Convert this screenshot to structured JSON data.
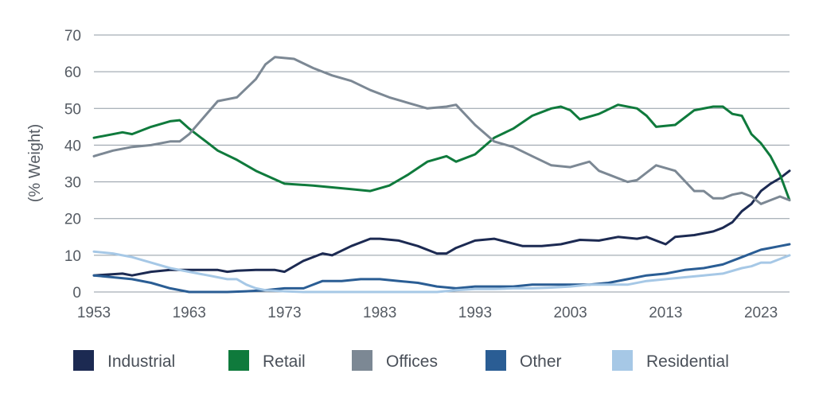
{
  "chart_data": {
    "type": "line",
    "title": "",
    "xlabel": "",
    "ylabel": "(% Weight)",
    "ylim": [
      0,
      70
    ],
    "xlim": [
      1953,
      2026
    ],
    "yticks": [
      0,
      10,
      20,
      30,
      40,
      50,
      60,
      70
    ],
    "xticks": [
      1953,
      1963,
      1973,
      1983,
      1993,
      2003,
      2013,
      2023
    ],
    "grid": true,
    "legend": "bottom",
    "series": [
      {
        "name": "Industrial",
        "color": "#1c2a52",
        "x": [
          1953,
          1956,
          1957,
          1959,
          1961,
          1963,
          1966,
          1967,
          1968,
          1970,
          1972,
          1973,
          1975,
          1977,
          1978,
          1980,
          1982,
          1983,
          1985,
          1987,
          1989,
          1990,
          1991,
          1993,
          1995,
          1998,
          2000,
          2002,
          2004,
          2006,
          2008,
          2010,
          2011,
          2013,
          2014,
          2016,
          2018,
          2019,
          2020,
          2021,
          2022,
          2023,
          2024,
          2025,
          2026
        ],
        "values": [
          4.5,
          5,
          4.5,
          5.5,
          6,
          6,
          6,
          5.5,
          5.8,
          6,
          6,
          5.5,
          8.5,
          10.5,
          10,
          12.5,
          14.5,
          14.5,
          14,
          12.5,
          10.5,
          10.5,
          12,
          14,
          14.5,
          12.5,
          12.5,
          13,
          14.2,
          14,
          15,
          14.5,
          15,
          13,
          15,
          15.5,
          16.5,
          17.5,
          19,
          22,
          24,
          27.5,
          29.5,
          31,
          33
        ]
      },
      {
        "name": "Retail",
        "color": "#0f7a3c",
        "x": [
          1953,
          1956,
          1957,
          1959,
          1961,
          1962,
          1963,
          1965,
          1966,
          1968,
          1970,
          1973,
          1976,
          1978,
          1980,
          1982,
          1984,
          1986,
          1988,
          1990,
          1991,
          1993,
          1995,
          1997,
          1999,
          2001,
          2002,
          2003,
          2004,
          2006,
          2008,
          2010,
          2011,
          2012,
          2014,
          2016,
          2018,
          2019,
          2020,
          2021,
          2022,
          2023,
          2024,
          2025,
          2026
        ],
        "values": [
          42,
          43.5,
          43,
          45,
          46.5,
          46.8,
          44.5,
          40.5,
          38.5,
          36,
          33,
          29.5,
          29,
          28.5,
          28,
          27.5,
          29,
          32,
          35.5,
          37,
          35.5,
          37.5,
          42,
          44.5,
          48,
          50,
          50.5,
          49.5,
          47,
          48.5,
          51,
          50,
          48,
          45,
          45.5,
          49.5,
          50.5,
          50.5,
          48.5,
          48,
          43,
          40.5,
          37,
          32,
          25
        ]
      },
      {
        "name": "Offices",
        "color": "#7c8894",
        "x": [
          1953,
          1955,
          1957,
          1959,
          1961,
          1962,
          1963,
          1965,
          1966,
          1968,
          1970,
          1971,
          1972,
          1974,
          1976,
          1978,
          1980,
          1982,
          1984,
          1986,
          1988,
          1990,
          1991,
          1993,
          1995,
          1997,
          1999,
          2001,
          2003,
          2005,
          2006,
          2007,
          2009,
          2010,
          2011,
          2012,
          2014,
          2016,
          2017,
          2018,
          2019,
          2020,
          2021,
          2022,
          2023,
          2024,
          2025,
          2026
        ],
        "values": [
          37,
          38.5,
          39.5,
          40,
          41,
          41,
          43,
          49,
          52,
          53,
          58,
          62,
          64,
          63.5,
          61,
          59,
          57.5,
          55,
          53,
          51.5,
          50,
          50.5,
          51,
          45.5,
          41,
          39.5,
          37,
          34.5,
          34,
          35.5,
          33,
          32,
          30,
          30.5,
          32.5,
          34.5,
          33,
          27.5,
          27.5,
          25.5,
          25.5,
          26.5,
          27,
          26,
          24,
          25,
          26,
          25
        ]
      },
      {
        "name": "Other",
        "color": "#2a5d94",
        "x": [
          1953,
          1955,
          1957,
          1959,
          1961,
          1963,
          1965,
          1967,
          1969,
          1971,
          1973,
          1975,
          1977,
          1979,
          1981,
          1983,
          1985,
          1987,
          1989,
          1991,
          1993,
          1995,
          1997,
          1999,
          2001,
          2003,
          2005,
          2007,
          2009,
          2011,
          2013,
          2015,
          2017,
          2019,
          2021,
          2023,
          2024,
          2025,
          2026
        ],
        "values": [
          4.5,
          4,
          3.5,
          2.5,
          1,
          0,
          0,
          0,
          0.2,
          0.5,
          1,
          1,
          3,
          3,
          3.5,
          3.5,
          3,
          2.5,
          1.5,
          1,
          1.5,
          1.5,
          1.5,
          2,
          2,
          2,
          2,
          2.5,
          3.5,
          4.5,
          5,
          6,
          6.5,
          7.5,
          9.5,
          11.5,
          12,
          12.5,
          13
        ]
      },
      {
        "name": "Residential",
        "color": "#a6c8e6",
        "x": [
          1953,
          1955,
          1957,
          1959,
          1961,
          1963,
          1965,
          1967,
          1968,
          1969,
          1970,
          1971,
          1973,
          1975,
          1977,
          1979,
          1981,
          1983,
          1985,
          1987,
          1989,
          1991,
          1993,
          1995,
          1997,
          1999,
          2001,
          2003,
          2005,
          2007,
          2009,
          2011,
          2013,
          2015,
          2017,
          2019,
          2021,
          2022,
          2023,
          2024,
          2025,
          2026
        ],
        "values": [
          11,
          10.5,
          9.5,
          8,
          6.5,
          5.5,
          4.5,
          3.5,
          3.5,
          2,
          1,
          0.5,
          0.2,
          0,
          0,
          0,
          0,
          0,
          0,
          0,
          0,
          0.5,
          0.8,
          0.8,
          1,
          1,
          1.2,
          1.5,
          2,
          2,
          2,
          3,
          3.5,
          4,
          4.5,
          5,
          6.5,
          7,
          8,
          8,
          9,
          10
        ]
      }
    ]
  }
}
